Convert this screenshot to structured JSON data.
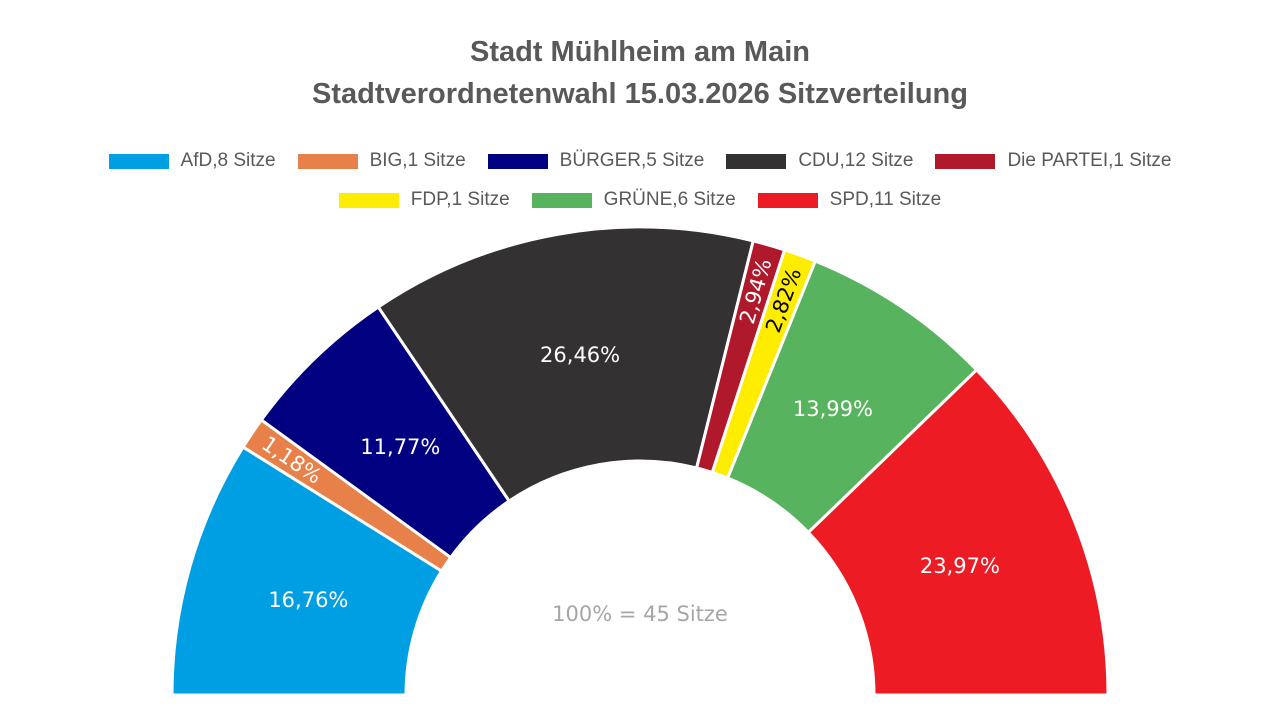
{
  "title": [
    "Stadt Mühlheim am Main",
    "Stadtverordnetenwahl 15.03.2026 Sitzverteilung"
  ],
  "chart_data": {
    "type": "pie",
    "variant": "semi-donut (parliament)",
    "title": "Stadt Mühlheim am Main Stadtverordnetenwahl 15.03.2026 Sitzverteilung",
    "total_seats": 45,
    "center_label": "100% = 45 Sitze",
    "legend_position": "top",
    "slices": [
      {
        "party": "AfD",
        "seats": 8,
        "legend": "AfD,8 Sitze",
        "percent": 16.76,
        "label": "16,76%",
        "color": "#009FE3",
        "text_color": "#FFFFFF"
      },
      {
        "party": "BIG",
        "seats": 1,
        "legend": "BIG,1 Sitze",
        "percent": 1.18,
        "label": "1,18%",
        "color": "#E8804A",
        "text_color": "#FFFFFF"
      },
      {
        "party": "BÜRGER",
        "seats": 5,
        "legend": "BÜRGER,5 Sitze",
        "percent": 11.77,
        "label": "11,77%",
        "color": "#000080",
        "text_color": "#FFFFFF"
      },
      {
        "party": "CDU",
        "seats": 12,
        "legend": "CDU,12 Sitze",
        "percent": 26.46,
        "label": "26,46%",
        "color": "#333132",
        "text_color": "#FFFFFF"
      },
      {
        "party": "Die PARTEI",
        "seats": 1,
        "legend": "Die PARTEI,1 Sitze",
        "percent": 2.94,
        "label": "2,94%",
        "color": "#B0192B",
        "text_color": "#FFFFFF"
      },
      {
        "party": "FDP",
        "seats": 1,
        "legend": "FDP,1 Sitze",
        "percent": 2.82,
        "label": "2,82%",
        "color": "#FFED00",
        "text_color": "#000000"
      },
      {
        "party": "GRÜNE",
        "seats": 6,
        "legend": "GRÜNE,6 Sitze",
        "percent": 13.99,
        "label": "13,99%",
        "color": "#58B35E",
        "text_color": "#FFFFFF"
      },
      {
        "party": "SPD",
        "seats": 11,
        "legend": "SPD,11 Sitze",
        "percent": 23.97,
        "label": "23,97%",
        "color": "#ED1C24",
        "text_color": "#FFFFFF"
      }
    ]
  }
}
